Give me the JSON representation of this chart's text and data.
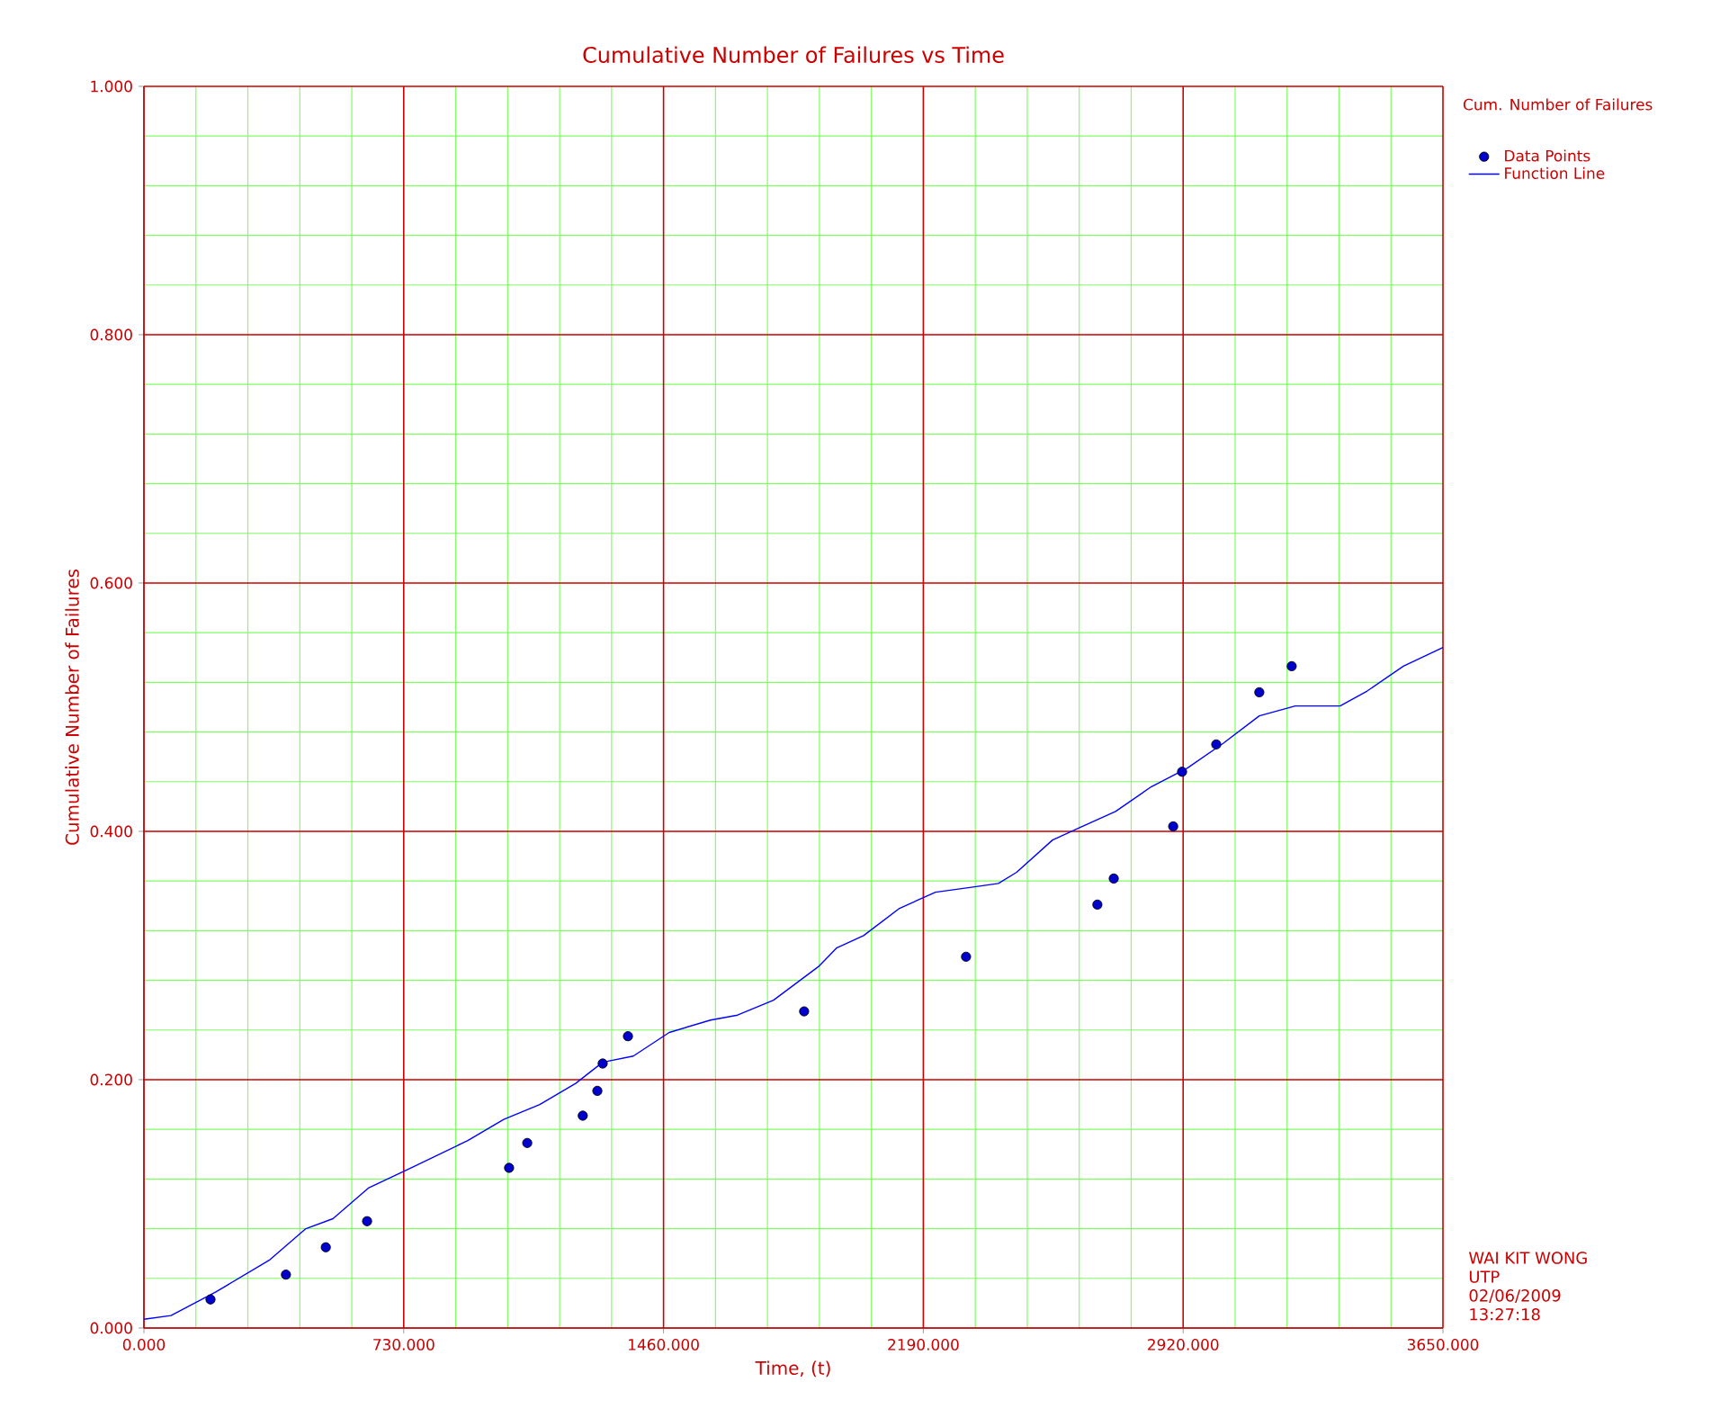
{
  "chart_data": {
    "type": "scatter",
    "title": "Cumulative Number of Failures vs Time",
    "xlabel": "Time, (t)",
    "ylabel": "Cumulative Number of Failures",
    "legend_title": "Cum. Number of Failures",
    "annotations": [
      "WAI KIT WONG",
      "UTP",
      "02/06/2009",
      "13:27:18"
    ],
    "xlim": [
      0,
      3650
    ],
    "ylim": [
      0,
      1
    ],
    "xticks": [
      {
        "value": 0,
        "label": "0.000"
      },
      {
        "value": 146,
        "label": null
      },
      {
        "value": 292,
        "label": null
      },
      {
        "value": 438,
        "label": null
      },
      {
        "value": 584,
        "label": null
      },
      {
        "value": 730,
        "label": "730.000"
      },
      {
        "value": 876,
        "label": null
      },
      {
        "value": 1022,
        "label": null
      },
      {
        "value": 1168,
        "label": null
      },
      {
        "value": 1314,
        "label": null
      },
      {
        "value": 1460,
        "label": "1460.000"
      },
      {
        "value": 1606,
        "label": null
      },
      {
        "value": 1752,
        "label": null
      },
      {
        "value": 1898,
        "label": null
      },
      {
        "value": 2044,
        "label": null
      },
      {
        "value": 2190,
        "label": "2190.000"
      },
      {
        "value": 2336,
        "label": null
      },
      {
        "value": 2482,
        "label": null
      },
      {
        "value": 2628,
        "label": null
      },
      {
        "value": 2774,
        "label": null
      },
      {
        "value": 2920,
        "label": "2920.000"
      },
      {
        "value": 3066,
        "label": null
      },
      {
        "value": 3212,
        "label": null
      },
      {
        "value": 3358,
        "label": null
      },
      {
        "value": 3504,
        "label": null
      },
      {
        "value": 3650,
        "label": "3650.000"
      }
    ],
    "yticks": [
      {
        "value": 0,
        "label": "0.000"
      },
      {
        "value": 0.04,
        "label": null
      },
      {
        "value": 0.08,
        "label": null
      },
      {
        "value": 0.12,
        "label": null
      },
      {
        "value": 0.16,
        "label": null
      },
      {
        "value": 0.2,
        "label": "0.200"
      },
      {
        "value": 0.24,
        "label": null
      },
      {
        "value": 0.28,
        "label": null
      },
      {
        "value": 0.32,
        "label": null
      },
      {
        "value": 0.36,
        "label": null
      },
      {
        "value": 0.4,
        "label": "0.400"
      },
      {
        "value": 0.44,
        "label": null
      },
      {
        "value": 0.48,
        "label": null
      },
      {
        "value": 0.52,
        "label": null
      },
      {
        "value": 0.56,
        "label": null
      },
      {
        "value": 0.6,
        "label": "0.600"
      },
      {
        "value": 0.64,
        "label": null
      },
      {
        "value": 0.68,
        "label": null
      },
      {
        "value": 0.72,
        "label": null
      },
      {
        "value": 0.76,
        "label": null
      },
      {
        "value": 0.8,
        "label": "0.800"
      },
      {
        "value": 0.84,
        "label": null
      },
      {
        "value": 0.88,
        "label": null
      },
      {
        "value": 0.92,
        "label": null
      },
      {
        "value": 0.96,
        "label": null
      },
      {
        "value": 1,
        "label": "1.000"
      }
    ],
    "grid": true,
    "legend": "top right",
    "series": [
      {
        "name": "Data Points",
        "type": "scatter",
        "marker": "circle",
        "color": "#0000cc",
        "x": [
          187,
          399,
          511,
          627,
          1026,
          1077,
          1233,
          1274,
          1289,
          1360,
          1855,
          2310,
          2679,
          2725,
          2892,
          2917,
          3013,
          3134,
          3225
        ],
        "values": [
          0.023,
          0.043,
          0.065,
          0.086,
          0.129,
          0.149,
          0.171,
          0.191,
          0.213,
          0.235,
          0.255,
          0.299,
          0.341,
          0.362,
          0.404,
          0.448,
          0.47,
          0.512,
          0.533
        ]
      },
      {
        "name": "Function Line",
        "type": "line",
        "marker": "none",
        "color": "#0000ff",
        "x": [
          0,
          76,
          202,
          354,
          455,
          531,
          632,
          758,
          910,
          1011,
          1112,
          1213,
          1289,
          1375,
          1476,
          1592,
          1668,
          1769,
          1895,
          1946,
          2022,
          2123,
          2224,
          2325,
          2401,
          2452,
          2553,
          2629,
          2730,
          2831,
          2932,
          3033,
          3134,
          3235,
          3361,
          3437,
          3539,
          3650
        ],
        "values": [
          0.007,
          0.01,
          0.029,
          0.055,
          0.08,
          0.088,
          0.113,
          0.13,
          0.151,
          0.168,
          0.18,
          0.197,
          0.214,
          0.219,
          0.238,
          0.248,
          0.252,
          0.264,
          0.291,
          0.306,
          0.316,
          0.338,
          0.351,
          0.355,
          0.358,
          0.367,
          0.393,
          0.403,
          0.416,
          0.436,
          0.451,
          0.471,
          0.493,
          0.501,
          0.501,
          0.513,
          0.533,
          0.548
        ]
      }
    ]
  }
}
